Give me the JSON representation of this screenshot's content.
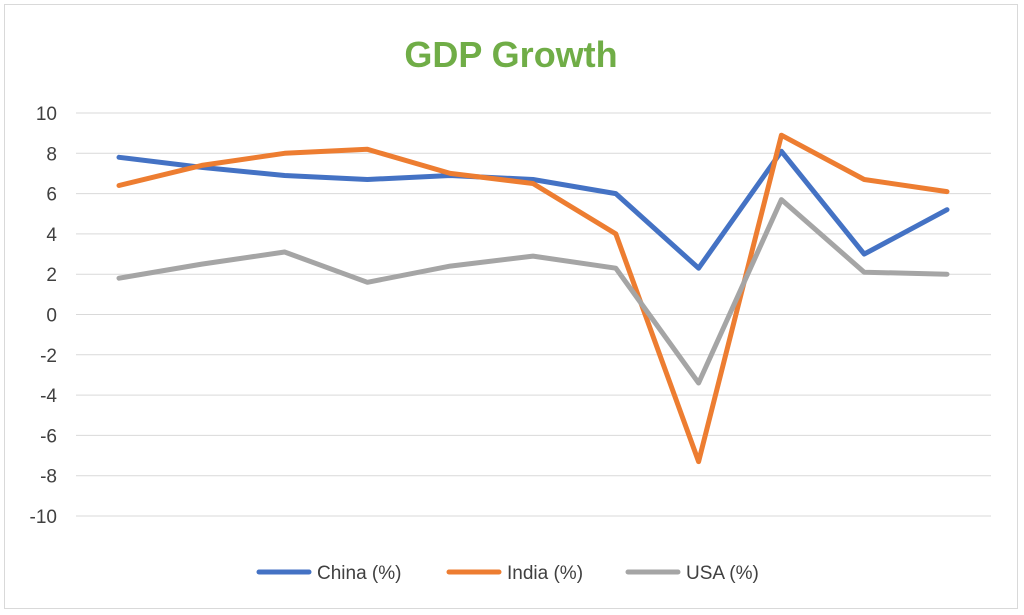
{
  "chart_data": {
    "type": "line",
    "title": "GDP Growth",
    "title_color": "#70ad47",
    "xlabel": "",
    "ylabel": "",
    "ylim": [
      -10,
      10
    ],
    "yticks": [
      10,
      8,
      6,
      4,
      2,
      0,
      -2,
      -4,
      -6,
      -8,
      -10
    ],
    "grid": true,
    "legend_position": "bottom",
    "x": [
      1,
      2,
      3,
      4,
      5,
      6,
      7,
      8,
      9,
      10,
      11
    ],
    "series": [
      {
        "name": "China (%)",
        "color": "#4472c4",
        "values": [
          7.8,
          7.3,
          6.9,
          6.7,
          6.9,
          6.7,
          6.0,
          2.3,
          8.1,
          3.0,
          5.2
        ]
      },
      {
        "name": "India (%)",
        "color": "#ed7d31",
        "values": [
          6.4,
          7.4,
          8.0,
          8.2,
          7.0,
          6.5,
          4.0,
          -7.3,
          8.9,
          6.7,
          6.1
        ]
      },
      {
        "name": "USA (%)",
        "color": "#a5a5a5",
        "values": [
          1.8,
          2.5,
          3.1,
          1.6,
          2.4,
          2.9,
          2.3,
          -3.4,
          5.7,
          2.1,
          2.0
        ]
      }
    ]
  }
}
